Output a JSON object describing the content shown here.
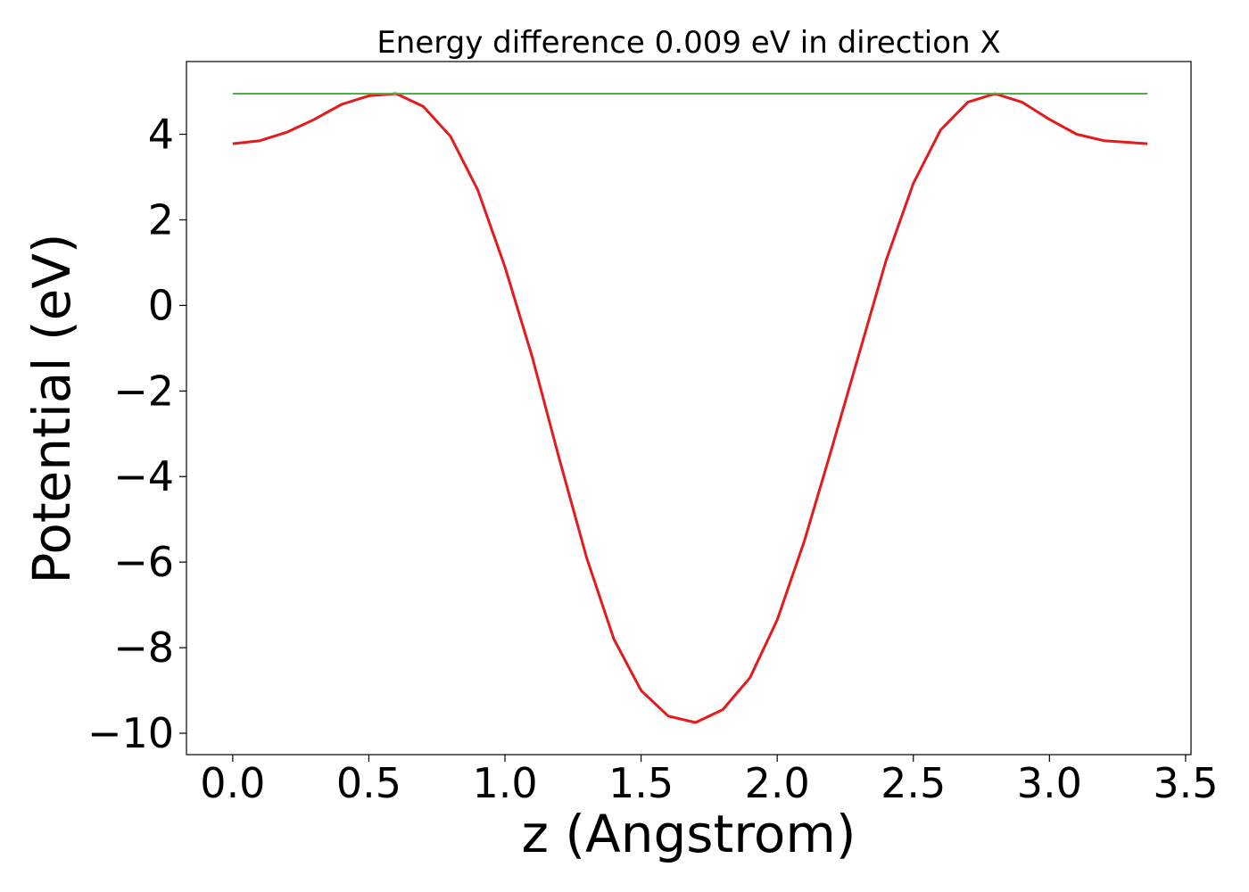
{
  "chart_data": {
    "type": "line",
    "title": "Energy difference 0.009 eV in direction X",
    "xlabel": "z (Angstrom)",
    "ylabel": "Potential (eV)",
    "xlim": [
      -0.17,
      3.52
    ],
    "ylim": [
      -10.5,
      5.7
    ],
    "grid": false,
    "xticks": [
      0.0,
      0.5,
      1.0,
      1.5,
      2.0,
      2.5,
      3.0,
      3.5
    ],
    "xtick_labels": [
      "0.0",
      "0.5",
      "1.0",
      "1.5",
      "2.0",
      "2.5",
      "3.0",
      "3.5"
    ],
    "yticks": [
      4,
      2,
      0,
      -2,
      -4,
      -6,
      -8,
      -10
    ],
    "ytick_labels": [
      "4",
      "2",
      "0",
      "−2",
      "−4",
      "−6",
      "−8",
      "−10"
    ],
    "series": [
      {
        "color": "#e41a1c",
        "x": [
          0.0,
          0.1,
          0.2,
          0.3,
          0.4,
          0.5,
          0.6,
          0.7,
          0.8,
          0.9,
          1.0,
          1.1,
          1.2,
          1.3,
          1.4,
          1.5,
          1.6,
          1.7,
          1.8,
          1.9,
          2.0,
          2.1,
          2.2,
          2.3,
          2.4,
          2.5,
          2.6,
          2.7,
          2.8,
          2.9,
          3.0,
          3.1,
          3.2,
          3.36
        ],
        "y": [
          3.78,
          3.85,
          4.05,
          4.35,
          4.7,
          4.9,
          4.95,
          4.65,
          3.95,
          2.7,
          0.9,
          -1.2,
          -3.6,
          -5.9,
          -7.8,
          -9.0,
          -9.6,
          -9.75,
          -9.45,
          -8.7,
          -7.35,
          -5.5,
          -3.35,
          -1.15,
          1.05,
          2.85,
          4.1,
          4.75,
          4.95,
          4.75,
          4.35,
          4.0,
          3.85,
          3.78
        ]
      },
      {
        "color": "#4daf4a",
        "x": [
          0.0,
          3.36
        ],
        "y": [
          4.95,
          4.95
        ]
      }
    ]
  }
}
